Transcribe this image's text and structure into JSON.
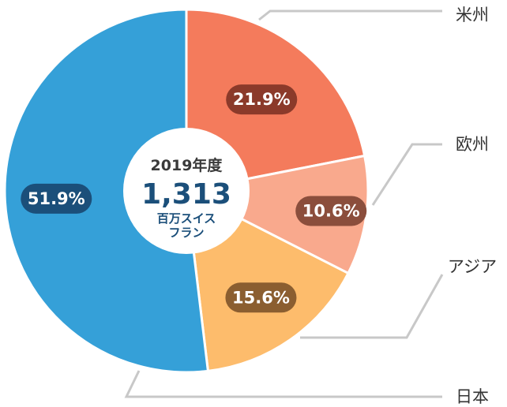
{
  "chart_data": {
    "type": "pie",
    "donut": true,
    "title": "",
    "center": {
      "year": "2019年度",
      "value": "1,313",
      "unit_line1": "百万スイス",
      "unit_line2": "フラン"
    },
    "categories": [
      "米州",
      "欧州",
      "アジア",
      "日本"
    ],
    "values": [
      21.9,
      10.6,
      15.6,
      51.9
    ],
    "value_labels": [
      "21.9%",
      "10.6%",
      "15.6%",
      "51.9%"
    ],
    "colors": [
      "#f47b5c",
      "#f9a98d",
      "#fdbc6c",
      "#35a0d8"
    ],
    "label_pill_colors": [
      "#8b3a2a",
      "#8b4e3c",
      "#8b5e30",
      "#1b4f7a"
    ],
    "leader_color": "#c8c8c8",
    "legend": "right"
  }
}
